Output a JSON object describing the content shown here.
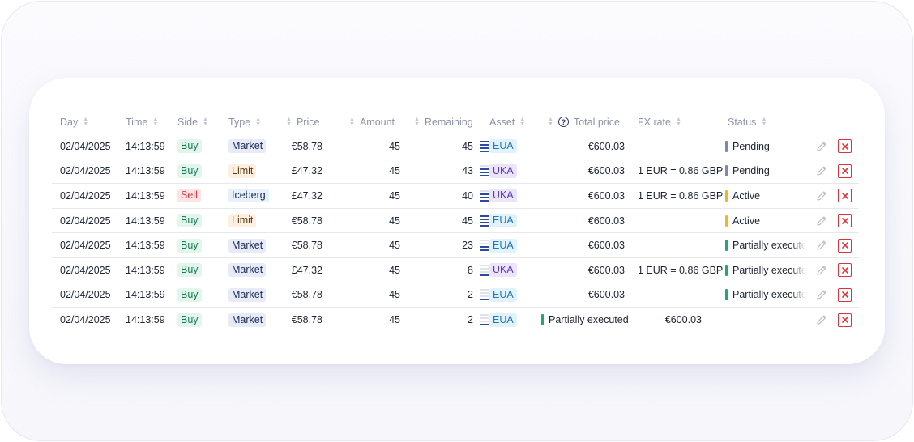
{
  "colors": {
    "status_pending": "#7a8aa8",
    "status_active": "#f5b324",
    "status_partial": "#23a57a",
    "delete": "#d9333c"
  },
  "headers": {
    "day": "Day",
    "time": "Time",
    "side": "Side",
    "type": "Type",
    "price": "Price",
    "amount": "Amount",
    "remaining": "Remaining",
    "asset": "Asset",
    "total_price": "Total price",
    "fx_rate": "FX rate",
    "status": "Status"
  },
  "rows": [
    {
      "day": "02/04/2025",
      "time": "14:13:59",
      "side": "Buy",
      "type": "Market",
      "price": "€58.78",
      "amount": "45",
      "remaining": "45",
      "fill_bars": 4,
      "asset": "EUA",
      "total": "€600.03",
      "fx": "",
      "status": "Pending",
      "status_kind": "pending"
    },
    {
      "day": "02/04/2025",
      "time": "14:13:59",
      "side": "Buy",
      "type": "Limit",
      "price": "£47.32",
      "amount": "45",
      "remaining": "43",
      "fill_bars": 3,
      "asset": "UKA",
      "total": "€600.03",
      "fx": "1 EUR = 0.86 GBP",
      "status": "Pending",
      "status_kind": "pending"
    },
    {
      "day": "02/04/2025",
      "time": "14:13:59",
      "side": "Sell",
      "type": "Iceberg",
      "price": "£47.32",
      "amount": "45",
      "remaining": "40",
      "fill_bars": 3,
      "asset": "UKA",
      "total": "€600.03",
      "fx": "1 EUR = 0.86 GBP",
      "status": "Active",
      "status_kind": "active"
    },
    {
      "day": "02/04/2025",
      "time": "14:13:59",
      "side": "Buy",
      "type": "Limit",
      "price": "€58.78",
      "amount": "45",
      "remaining": "45",
      "fill_bars": 4,
      "asset": "EUA",
      "total": "€600.03",
      "fx": "",
      "status": "Active",
      "status_kind": "active"
    },
    {
      "day": "02/04/2025",
      "time": "14:13:59",
      "side": "Buy",
      "type": "Market",
      "price": "€58.78",
      "amount": "45",
      "remaining": "23",
      "fill_bars": 2,
      "asset": "EUA",
      "total": "€600.03",
      "fx": "",
      "status": "Partially executed",
      "status_kind": "partial"
    },
    {
      "day": "02/04/2025",
      "time": "14:13:59",
      "side": "Buy",
      "type": "Market",
      "price": "£47.32",
      "amount": "45",
      "remaining": "8",
      "fill_bars": 1,
      "asset": "UKA",
      "total": "€600.03",
      "fx": "1 EUR = 0.86 GBP",
      "status": "Partially executed",
      "status_kind": "partial"
    },
    {
      "day": "02/04/2025",
      "time": "14:13:59",
      "side": "Buy",
      "type": "Market",
      "price": "€58.78",
      "amount": "45",
      "remaining": "2",
      "fill_bars": 1,
      "asset": "EUA",
      "total": "€600.03",
      "fx": "",
      "status": "Partially executed",
      "status_kind": "partial"
    },
    {
      "day": "02/04/2025",
      "time": "14:13:59",
      "side": "Buy",
      "type": "Market",
      "price": "€58.78",
      "amount": "45",
      "remaining": "2",
      "fill_bars": 1,
      "asset": "EUA",
      "total": "€600.03",
      "fx": "",
      "status": "Partially executed",
      "status_kind": "partial",
      "shifted": true
    }
  ]
}
